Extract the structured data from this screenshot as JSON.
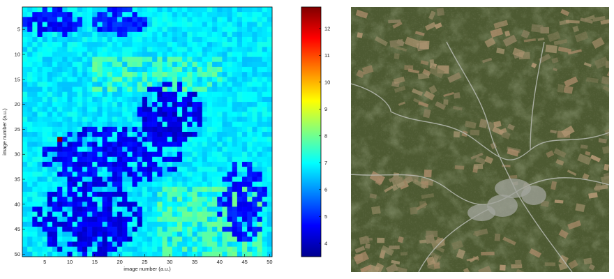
{
  "chart_data": [
    {
      "type": "heatmap",
      "xlabel": "image number (a.u.)",
      "ylabel": "image number (a.u.)",
      "x_ticks": [
        5,
        10,
        15,
        20,
        25,
        30,
        35,
        40,
        45,
        50
      ],
      "y_ticks": [
        5,
        10,
        15,
        20,
        25,
        30,
        35,
        40,
        45,
        50
      ],
      "xlim": [
        0.5,
        50.5
      ],
      "ylim": [
        0.5,
        50.5
      ],
      "y_axis_direction": "downward",
      "grid": "50x50",
      "value_range": [
        3.5,
        12.8
      ],
      "colormap": "jet",
      "colorbar": {
        "ticks": [
          4,
          5,
          6,
          7,
          8,
          9,
          10,
          11,
          12
        ],
        "colors": [
          "#00008f",
          "#0000ff",
          "#0080ff",
          "#00ffff",
          "#80ff80",
          "#ffff00",
          "#ff8000",
          "#ff0000",
          "#800000"
        ]
      },
      "typical_value": 6.8,
      "low_value_regions": [
        {
          "label": "upper-left patches",
          "x_range": [
            1,
            12
          ],
          "y_range": [
            1,
            6
          ],
          "value": 4.7
        },
        {
          "label": "upper-middle patches",
          "x_range": [
            14,
            25
          ],
          "y_range": [
            1,
            6
          ],
          "value": 4.9
        },
        {
          "label": "left band",
          "x_range": [
            5,
            32
          ],
          "y_range": [
            25,
            36
          ],
          "value": 4.6
        },
        {
          "label": "central cluster",
          "x_range": [
            24,
            36
          ],
          "y_range": [
            16,
            28
          ],
          "value": 4.4
        },
        {
          "label": "lower-left cluster",
          "x_range": [
            3,
            24
          ],
          "y_range": [
            36,
            50
          ],
          "value": 4.5
        },
        {
          "label": "lower-right cluster",
          "x_range": [
            40,
            49
          ],
          "y_range": [
            32,
            47
          ],
          "value": 4.8
        }
      ],
      "high_value_regions": [
        {
          "label": "upper-middle warm band",
          "x_range": [
            15,
            40
          ],
          "y_range": [
            11,
            17
          ],
          "value": 7.8
        },
        {
          "label": "lower-right warm band",
          "x_range": [
            28,
            48
          ],
          "y_range": [
            37,
            50
          ],
          "value": 7.8
        }
      ],
      "peak": {
        "x": 8,
        "y": 27,
        "value": 12.8
      }
    }
  ],
  "satellite_image": {
    "palette": {
      "forest": "#4d5a32",
      "dark_forest": "#3d4a28",
      "field": "#8a7f5e",
      "bare_soil": "#a88968",
      "road": "#b9bcb4",
      "town": "#a3a69e"
    }
  }
}
